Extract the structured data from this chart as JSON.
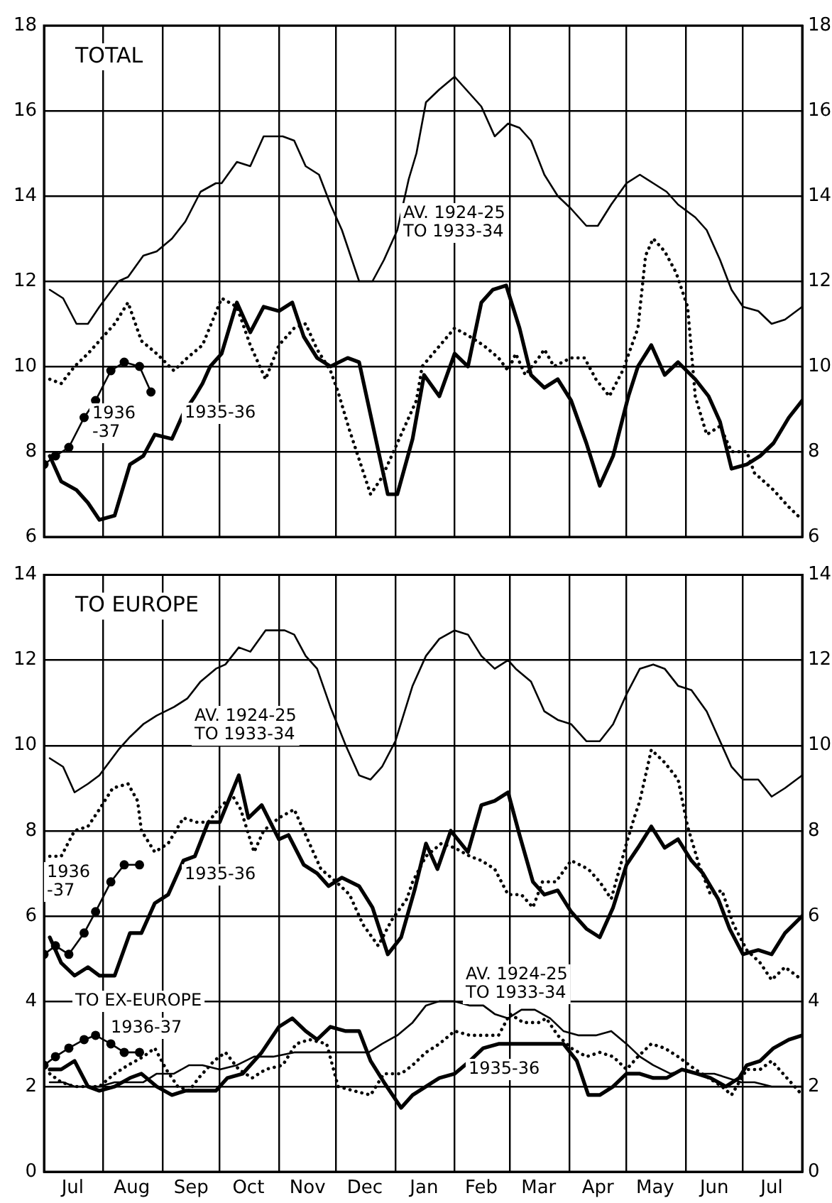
{
  "chart_data": [
    {
      "type": "line",
      "title": "TOTAL",
      "xlim": [
        "1935-07-01",
        "1936-08-01"
      ],
      "ylim": [
        6,
        18
      ],
      "yticks": [
        6,
        8,
        10,
        12,
        14,
        16,
        18
      ],
      "y2lim": [
        6,
        18
      ],
      "y2ticks": [
        6,
        8,
        10,
        12,
        14,
        16,
        18
      ],
      "grid": true,
      "tick_labels": "y",
      "xticks": [
        {
          "value": "1935-07-01",
          "label": null
        },
        {
          "value": "1935-08-01",
          "label": null
        },
        {
          "value": "1935-09-01",
          "label": null
        },
        {
          "value": "1935-10-01",
          "label": null
        },
        {
          "value": "1935-11-01",
          "label": null
        },
        {
          "value": "1935-12-01",
          "label": null
        },
        {
          "value": "1936-01-01",
          "label": null
        },
        {
          "value": "1936-02-01",
          "label": null
        },
        {
          "value": "1936-03-01",
          "label": null
        },
        {
          "value": "1936-04-01",
          "label": null
        },
        {
          "value": "1936-05-01",
          "label": null
        },
        {
          "value": "1936-06-01",
          "label": null
        },
        {
          "value": "1936-07-01",
          "label": null
        },
        {
          "value": "1936-08-01",
          "label": null
        }
      ],
      "series": [
        {
          "color": "#000000",
          "line_style": "solid",
          "x": [
            "1935-07-04",
            "1935-07-11",
            "1935-07-18",
            "1935-07-24",
            "1935-07-30",
            "1935-08-09",
            "1935-08-14",
            "1935-08-22",
            "1935-08-29",
            "1935-09-06",
            "1935-09-13",
            "1935-09-21",
            "1935-09-29",
            "1935-10-02",
            "1935-10-10",
            "1935-10-17",
            "1935-10-24",
            "1935-11-03",
            "1935-11-09",
            "1935-11-15",
            "1935-11-22",
            "1935-11-28",
            "1935-12-04",
            "1935-12-13",
            "1935-12-20",
            "1935-12-26",
            "1936-01-02",
            "1936-01-08",
            "1936-01-12",
            "1936-01-17",
            "1936-01-24",
            "1936-02-01",
            "1936-02-09",
            "1936-02-15",
            "1936-02-22",
            "1936-02-29",
            "1936-03-06",
            "1936-03-12",
            "1936-03-19",
            "1936-03-26",
            "1936-04-02",
            "1936-04-10",
            "1936-04-16",
            "1936-04-23",
            "1936-05-01",
            "1936-05-08",
            "1936-05-15",
            "1936-05-22",
            "1936-05-28",
            "1936-06-06",
            "1936-06-12",
            "1936-06-19",
            "1936-06-25",
            "1936-07-01",
            "1936-07-09",
            "1936-07-16",
            "1936-07-23",
            "1936-08-01"
          ],
          "values": [
            11.8,
            11.6,
            11.0,
            11.0,
            11.4,
            12.0,
            12.1,
            12.6,
            12.7,
            13.0,
            13.4,
            14.1,
            14.3,
            14.3,
            14.8,
            14.7,
            15.4,
            15.4,
            15.3,
            14.7,
            14.5,
            13.8,
            13.2,
            12.0,
            12.0,
            12.5,
            13.2,
            14.4,
            15.0,
            16.2,
            16.5,
            16.8,
            16.4,
            16.1,
            15.4,
            15.7,
            15.6,
            15.3,
            14.5,
            14.0,
            13.7,
            13.3,
            13.3,
            13.8,
            14.3,
            14.5,
            14.3,
            14.1,
            13.8,
            13.5,
            13.2,
            12.5,
            11.8,
            11.4,
            11.3,
            11.0,
            11.1,
            11.4
          ]
        },
        {
          "color": "#000000",
          "line_style": "solid",
          "x": [
            "1935-07-04",
            "1935-07-10",
            "1935-07-18",
            "1935-07-24",
            "1935-07-30",
            "1935-08-07",
            "1935-08-15",
            "1935-08-22",
            "1935-08-28",
            "1935-09-06",
            "1935-09-12",
            "1935-09-18",
            "1935-09-22",
            "1935-09-26",
            "1935-10-02",
            "1935-10-10",
            "1935-10-17",
            "1935-10-24",
            "1935-11-01",
            "1935-11-08",
            "1935-11-14",
            "1935-11-21",
            "1935-11-28",
            "1935-12-07",
            "1935-12-13",
            "1935-12-28",
            "1936-01-02",
            "1936-01-10",
            "1936-01-16",
            "1936-01-24",
            "1936-02-01",
            "1936-02-08",
            "1936-02-15",
            "1936-02-21",
            "1936-02-28",
            "1936-03-06",
            "1936-03-12",
            "1936-03-19",
            "1936-03-26",
            "1936-04-02",
            "1936-04-10",
            "1936-04-17",
            "1936-04-24",
            "1936-05-02",
            "1936-05-07",
            "1936-05-14",
            "1936-05-21",
            "1936-05-28",
            "1936-06-06",
            "1936-06-13",
            "1936-06-19",
            "1936-06-25",
            "1936-07-03",
            "1936-07-10",
            "1936-07-17",
            "1936-07-25",
            "1936-08-01"
          ],
          "values": [
            7.9,
            7.3,
            7.1,
            6.8,
            6.4,
            6.5,
            7.7,
            7.9,
            8.4,
            8.3,
            8.9,
            9.3,
            9.6,
            10.0,
            10.3,
            11.5,
            10.8,
            11.4,
            11.3,
            11.5,
            10.7,
            10.2,
            10.0,
            10.2,
            10.1,
            7.0,
            7.0,
            8.3,
            9.8,
            9.3,
            10.3,
            10.0,
            11.5,
            11.8,
            11.9,
            10.9,
            9.8,
            9.5,
            9.7,
            9.2,
            8.2,
            7.2,
            7.9,
            9.3,
            10.0,
            10.5,
            9.8,
            10.1,
            9.7,
            9.3,
            8.7,
            7.6,
            7.7,
            7.9,
            8.2,
            8.8,
            9.2
          ]
        },
        {
          "color": "#000000",
          "line_style": "dotted",
          "x": [
            "1935-07-04",
            "1935-07-10",
            "1935-07-17",
            "1935-07-24",
            "1935-07-30",
            "1935-08-07",
            "1935-08-14",
            "1935-08-21",
            "1935-08-29",
            "1935-09-07",
            "1935-09-14",
            "1935-09-22",
            "1935-10-02",
            "1935-10-10",
            "1935-10-17",
            "1935-10-25",
            "1935-11-01",
            "1935-11-09",
            "1935-11-15",
            "1935-11-21",
            "1935-11-28",
            "1935-12-02",
            "1935-12-08",
            "1935-12-19",
            "1935-12-25",
            "1936-01-02",
            "1936-01-12",
            "1936-01-15",
            "1936-02-01",
            "1936-02-09",
            "1936-02-16",
            "1936-02-24",
            "1936-02-29",
            "1936-03-04",
            "1936-03-09",
            "1936-03-16",
            "1936-03-19",
            "1936-03-24",
            "1936-04-02",
            "1936-04-09",
            "1936-04-15",
            "1936-04-22",
            "1936-04-29",
            "1936-05-07",
            "1936-05-11",
            "1936-05-15",
            "1936-05-21",
            "1936-05-27",
            "1936-06-02",
            "1936-06-06",
            "1936-06-12",
            "1936-06-19",
            "1936-06-25",
            "1936-07-03",
            "1936-07-07",
            "1936-07-17",
            "1936-07-25",
            "1936-08-01"
          ],
          "values": [
            9.7,
            9.6,
            10.0,
            10.3,
            10.6,
            11.0,
            11.5,
            10.6,
            10.3,
            9.9,
            10.2,
            10.5,
            11.6,
            11.4,
            10.5,
            9.7,
            10.5,
            10.9,
            11.0,
            10.4,
            9.9,
            9.4,
            8.5,
            7.0,
            7.4,
            8.2,
            9.2,
            10.0,
            10.9,
            10.7,
            10.5,
            10.2,
            9.9,
            10.3,
            9.8,
            10.2,
            10.4,
            10.0,
            10.2,
            10.2,
            9.7,
            9.3,
            9.9,
            10.9,
            12.6,
            13.0,
            12.7,
            12.2,
            11.4,
            9.3,
            8.4,
            8.6,
            8.0,
            8.0,
            7.5,
            7.1,
            6.7,
            6.4
          ]
        },
        {
          "color": "#000000",
          "line_style": "solid",
          "marker": "circle",
          "x": [
            "1935-07-01",
            "1935-07-07",
            "1935-07-14",
            "1935-07-22",
            "1935-07-28",
            "1935-08-05",
            "1935-08-12",
            "1935-08-20",
            "1935-08-26"
          ],
          "values": [
            7.7,
            7.9,
            8.1,
            8.8,
            9.2,
            9.9,
            10.1,
            10.0,
            9.4
          ]
        }
      ],
      "annotations": [
        "AV. 1924-25\nTO 1933-34",
        "1936\n-37",
        "1935-36"
      ]
    },
    {
      "type": "line",
      "title": "TO EUROPE",
      "xlim": [
        "1935-07-01",
        "1936-08-01"
      ],
      "ylim": [
        0,
        14
      ],
      "yticks": [
        0,
        2,
        4,
        6,
        8,
        10,
        12,
        14
      ],
      "y2lim": [
        0,
        14
      ],
      "y2ticks": [
        0,
        2,
        4,
        6,
        8,
        10,
        12,
        14
      ],
      "grid": true,
      "xticks": [
        {
          "value": "1935-07-01",
          "label": null
        },
        {
          "value": "1935-07-16",
          "label": "Jul"
        },
        {
          "value": "1935-08-01",
          "label": null
        },
        {
          "value": "1935-08-16",
          "label": "Aug"
        },
        {
          "value": "1935-09-01",
          "label": null
        },
        {
          "value": "1935-09-16",
          "label": "Sep"
        },
        {
          "value": "1935-10-01",
          "label": null
        },
        {
          "value": "1935-10-16",
          "label": "Oct"
        },
        {
          "value": "1935-11-01",
          "label": null
        },
        {
          "value": "1935-11-16",
          "label": "Nov"
        },
        {
          "value": "1935-12-01",
          "label": null
        },
        {
          "value": "1935-12-16",
          "label": "Dec"
        },
        {
          "value": "1936-01-01",
          "label": null
        },
        {
          "value": "1936-01-16",
          "label": "Jan"
        },
        {
          "value": "1936-02-01",
          "label": null
        },
        {
          "value": "1936-02-15",
          "label": "Feb"
        },
        {
          "value": "1936-03-01",
          "label": null
        },
        {
          "value": "1936-03-16",
          "label": "Mar"
        },
        {
          "value": "1936-04-01",
          "label": null
        },
        {
          "value": "1936-04-16",
          "label": "Apr"
        },
        {
          "value": "1936-05-01",
          "label": null
        },
        {
          "value": "1936-05-16",
          "label": "May"
        },
        {
          "value": "1936-06-01",
          "label": null
        },
        {
          "value": "1936-06-16",
          "label": "Jun"
        },
        {
          "value": "1936-07-01",
          "label": null
        },
        {
          "value": "1936-07-16",
          "label": "Jul"
        },
        {
          "value": "1936-08-01",
          "label": null
        }
      ],
      "series": [
        {
          "color": "#000000",
          "line_style": "solid",
          "x": [
            "1935-07-04",
            "1935-07-11",
            "1935-07-17",
            "1935-07-24",
            "1935-07-30",
            "1935-08-09",
            "1935-08-15",
            "1935-08-22",
            "1935-08-29",
            "1935-09-07",
            "1935-09-14",
            "1935-09-21",
            "1935-09-29",
            "1935-10-04",
            "1935-10-11",
            "1935-10-17",
            "1935-10-25",
            "1935-11-04",
            "1935-11-09",
            "1935-11-15",
            "1935-11-21",
            "1935-11-28",
            "1935-12-06",
            "1935-12-13",
            "1935-12-19",
            "1935-12-25",
            "1936-01-01",
            "1936-01-10",
            "1936-01-17",
            "1936-01-24",
            "1936-02-01",
            "1936-02-08",
            "1936-02-15",
            "1936-02-22",
            "1936-02-29",
            "1936-03-04",
            "1936-03-12",
            "1936-03-19",
            "1936-03-26",
            "1936-04-02",
            "1936-04-10",
            "1936-04-17",
            "1936-04-24",
            "1936-05-01",
            "1936-05-08",
            "1936-05-15",
            "1936-05-21",
            "1936-05-28",
            "1936-06-04",
            "1936-06-12",
            "1936-06-18",
            "1936-06-25",
            "1936-07-01",
            "1936-07-09",
            "1936-07-16",
            "1936-07-23",
            "1936-08-01"
          ],
          "values": [
            9.7,
            9.5,
            8.9,
            9.1,
            9.3,
            9.9,
            10.2,
            10.5,
            10.7,
            10.9,
            11.1,
            11.5,
            11.8,
            11.9,
            12.3,
            12.2,
            12.7,
            12.7,
            12.6,
            12.1,
            11.8,
            10.9,
            10.0,
            9.3,
            9.2,
            9.5,
            10.1,
            11.4,
            12.1,
            12.5,
            12.7,
            12.6,
            12.1,
            11.8,
            12.0,
            11.8,
            11.5,
            10.8,
            10.6,
            10.5,
            10.1,
            10.1,
            10.5,
            11.2,
            11.8,
            11.9,
            11.8,
            11.4,
            11.3,
            10.8,
            10.2,
            9.5,
            9.2,
            9.2,
            8.8,
            9.0,
            9.3
          ]
        },
        {
          "color": "#000000",
          "line_style": "solid",
          "x": [
            "1935-07-04",
            "1935-07-10",
            "1935-07-17",
            "1935-07-24",
            "1935-07-30",
            "1935-08-07",
            "1935-08-15",
            "1935-08-21",
            "1935-08-28",
            "1935-09-04",
            "1935-09-12",
            "1935-09-18",
            "1935-09-25",
            "1935-10-01",
            "1935-10-11",
            "1935-10-16",
            "1935-10-23",
            "1935-11-01",
            "1935-11-06",
            "1935-11-14",
            "1935-11-21",
            "1935-11-27",
            "1935-12-04",
            "1935-12-13",
            "1935-12-20",
            "1935-12-28",
            "1936-01-04",
            "1936-01-11",
            "1936-01-17",
            "1936-01-23",
            "1936-01-30",
            "1936-02-08",
            "1936-02-15",
            "1936-02-22",
            "1936-02-29",
            "1936-03-06",
            "1936-03-13",
            "1936-03-19",
            "1936-03-26",
            "1936-04-02",
            "1936-04-10",
            "1936-04-17",
            "1936-04-24",
            "1936-05-01",
            "1936-05-07",
            "1936-05-14",
            "1936-05-21",
            "1936-05-28",
            "1936-06-04",
            "1936-06-10",
            "1936-06-18",
            "1936-06-24",
            "1936-07-01",
            "1936-07-09",
            "1936-07-16",
            "1936-07-23",
            "1936-08-01"
          ],
          "values": [
            5.5,
            4.9,
            4.6,
            4.8,
            4.6,
            4.6,
            5.6,
            5.6,
            6.3,
            6.5,
            7.3,
            7.4,
            8.2,
            8.2,
            9.3,
            8.3,
            8.6,
            7.8,
            7.9,
            7.2,
            7.0,
            6.7,
            6.9,
            6.7,
            6.2,
            5.1,
            5.5,
            6.6,
            7.7,
            7.1,
            8.0,
            7.5,
            8.6,
            8.7,
            8.9,
            7.9,
            6.8,
            6.5,
            6.6,
            6.1,
            5.7,
            5.5,
            6.2,
            7.2,
            7.6,
            8.1,
            7.6,
            7.8,
            7.3,
            7.0,
            6.4,
            5.7,
            5.1,
            5.2,
            5.1,
            5.6,
            6.0
          ]
        },
        {
          "color": "#000000",
          "line_style": "dotted",
          "x": [
            "1935-07-04",
            "1935-07-10",
            "1935-07-17",
            "1935-07-24",
            "1935-07-30",
            "1935-08-06",
            "1935-08-14",
            "1935-08-19",
            "1935-08-21",
            "1935-08-28",
            "1935-09-04",
            "1935-09-12",
            "1935-09-19",
            "1935-09-25",
            "1935-10-02",
            "1935-10-08",
            "1935-10-12",
            "1935-10-19",
            "1935-10-24",
            "1935-11-01",
            "1935-11-09",
            "1935-11-16",
            "1935-11-23",
            "1935-12-01",
            "1935-12-08",
            "1935-12-15",
            "1935-12-23",
            "1935-12-30",
            "1936-01-07",
            "1936-01-10",
            "1936-01-17",
            "1936-01-25",
            "1936-02-01",
            "1936-02-09",
            "1936-02-15",
            "1936-02-22",
            "1936-02-29",
            "1936-03-07",
            "1936-03-13",
            "1936-03-18",
            "1936-03-25",
            "1936-04-02",
            "1936-04-11",
            "1936-04-17",
            "1936-04-23",
            "1936-05-01",
            "1936-05-05",
            "1936-05-08",
            "1936-05-14",
            "1936-05-21",
            "1936-05-28",
            "1936-06-02",
            "1936-06-08",
            "1936-06-14",
            "1936-06-20",
            "1936-06-26",
            "1936-07-03",
            "1936-07-10",
            "1936-07-16",
            "1936-07-23",
            "1936-08-01"
          ],
          "values": [
            7.4,
            7.4,
            8.0,
            8.1,
            8.5,
            9.0,
            9.1,
            8.7,
            8.0,
            7.5,
            7.7,
            8.3,
            8.2,
            8.2,
            8.6,
            8.8,
            8.5,
            7.5,
            8.0,
            8.3,
            8.5,
            7.8,
            7.1,
            6.8,
            6.5,
            5.8,
            5.3,
            5.9,
            6.4,
            6.8,
            7.4,
            7.7,
            7.6,
            7.4,
            7.3,
            7.1,
            6.5,
            6.5,
            6.2,
            6.8,
            6.8,
            7.3,
            7.1,
            6.8,
            6.4,
            7.7,
            8.3,
            8.7,
            9.9,
            9.6,
            9.2,
            8.1,
            7.2,
            6.5,
            6.6,
            5.8,
            5.2,
            4.9,
            4.5,
            4.8,
            4.5
          ]
        },
        {
          "color": "#000000",
          "line_style": "solid",
          "marker": "circle",
          "x": [
            "1935-07-01",
            "1935-07-07",
            "1935-07-14",
            "1935-07-22",
            "1935-07-28",
            "1935-08-05",
            "1935-08-12",
            "1935-08-20"
          ],
          "values": [
            5.1,
            5.3,
            5.1,
            5.6,
            6.1,
            6.8,
            7.2,
            7.2
          ]
        },
        {
          "color": "#000000",
          "line_style": "solid",
          "x": [
            "1935-07-04",
            "1935-07-11",
            "1935-07-17",
            "1935-07-24",
            "1935-07-30",
            "1935-08-07",
            "1935-08-15",
            "1935-08-22",
            "1935-08-29",
            "1935-09-07",
            "1935-09-15",
            "1935-09-22",
            "1935-10-01",
            "1935-10-10",
            "1935-10-19",
            "1935-10-29",
            "1935-11-09",
            "1935-11-19",
            "1935-11-28",
            "1935-12-08",
            "1935-12-18",
            "1935-12-25",
            "1936-01-02",
            "1936-01-10",
            "1936-01-17",
            "1936-01-24",
            "1936-02-01",
            "1936-02-09",
            "1936-02-16",
            "1936-02-22",
            "1936-02-29",
            "1936-03-07",
            "1936-03-14",
            "1936-03-22",
            "1936-03-29",
            "1936-04-06",
            "1936-04-15",
            "1936-04-23",
            "1936-05-01",
            "1936-05-08",
            "1936-05-15",
            "1936-05-24",
            "1936-06-01",
            "1936-06-08",
            "1936-06-16",
            "1936-06-23",
            "1936-06-30",
            "1936-07-07",
            "1936-07-16",
            "1936-07-23",
            "1936-08-01"
          ],
          "values": [
            2.1,
            2.1,
            2.0,
            2.0,
            2.0,
            2.1,
            2.1,
            2.1,
            2.3,
            2.3,
            2.5,
            2.5,
            2.4,
            2.5,
            2.7,
            2.7,
            2.8,
            2.8,
            2.8,
            2.8,
            2.8,
            3.0,
            3.2,
            3.5,
            3.9,
            4.0,
            4.0,
            3.9,
            3.9,
            3.7,
            3.6,
            3.8,
            3.8,
            3.6,
            3.3,
            3.2,
            3.2,
            3.3,
            3.0,
            2.7,
            2.5,
            2.3,
            2.4,
            2.3,
            2.3,
            2.2,
            2.1,
            2.1,
            2.0,
            2.0,
            2.0
          ]
        },
        {
          "color": "#000000",
          "line_style": "solid",
          "x": [
            "1935-07-04",
            "1935-07-10",
            "1935-07-17",
            "1935-07-24",
            "1935-07-30",
            "1935-08-07",
            "1935-08-15",
            "1935-08-21",
            "1935-08-29",
            "1935-09-06",
            "1935-09-13",
            "1935-09-22",
            "1935-09-29",
            "1935-10-05",
            "1935-10-13",
            "1935-10-23",
            "1935-11-01",
            "1935-11-08",
            "1935-11-15",
            "1935-11-21",
            "1935-11-28",
            "1935-12-06",
            "1935-12-13",
            "1935-12-19",
            "1935-12-26",
            "1936-01-04",
            "1936-01-10",
            "1936-01-17",
            "1936-01-24",
            "1936-02-01",
            "1936-02-09",
            "1936-02-16",
            "1936-02-24",
            "1936-03-01",
            "1936-03-08",
            "1936-03-14",
            "1936-03-22",
            "1936-03-29",
            "1936-04-05",
            "1936-04-11",
            "1936-04-17",
            "1936-04-24",
            "1936-05-01",
            "1936-05-08",
            "1936-05-15",
            "1936-05-22",
            "1936-05-30",
            "1936-06-07",
            "1936-06-14",
            "1936-06-22",
            "1936-06-29",
            "1936-07-03",
            "1936-07-10",
            "1936-07-17",
            "1936-07-25",
            "1936-08-01"
          ],
          "values": [
            2.4,
            2.4,
            2.6,
            2.0,
            1.9,
            2.0,
            2.2,
            2.3,
            2.0,
            1.8,
            1.9,
            1.9,
            1.9,
            2.2,
            2.3,
            2.8,
            3.4,
            3.6,
            3.3,
            3.1,
            3.4,
            3.3,
            3.3,
            2.6,
            2.1,
            1.5,
            1.8,
            2.0,
            2.2,
            2.3,
            2.6,
            2.9,
            3.0,
            3.0,
            3.0,
            3.0,
            3.0,
            3.0,
            2.6,
            1.8,
            1.8,
            2.0,
            2.3,
            2.3,
            2.2,
            2.2,
            2.4,
            2.3,
            2.2,
            2.0,
            2.2,
            2.5,
            2.6,
            2.9,
            3.1,
            3.2
          ]
        },
        {
          "color": "#000000",
          "line_style": "dotted",
          "x": [
            "1935-07-04",
            "1935-07-10",
            "1935-07-17",
            "1935-07-24",
            "1935-07-30",
            "1935-08-07",
            "1935-08-14",
            "1935-08-22",
            "1935-08-28",
            "1935-09-03",
            "1935-09-09",
            "1935-09-15",
            "1935-09-20",
            "1935-09-28",
            "1935-10-04",
            "1935-10-11",
            "1935-10-18",
            "1935-10-25",
            "1935-11-03",
            "1935-11-10",
            "1935-11-17",
            "1935-11-26",
            "1935-12-02",
            "1935-12-10",
            "1935-12-19",
            "1935-12-26",
            "1936-01-04",
            "1936-01-10",
            "1936-01-17",
            "1936-01-24",
            "1936-02-01",
            "1936-02-09",
            "1936-02-16",
            "1936-02-24",
            "1936-03-01",
            "1936-03-08",
            "1936-03-16",
            "1936-03-20",
            "1936-03-26",
            "1936-04-02",
            "1936-04-10",
            "1936-04-17",
            "1936-04-24",
            "1936-05-01",
            "1936-05-07",
            "1936-05-14",
            "1936-05-21",
            "1936-05-28",
            "1936-06-06",
            "1936-06-13",
            "1936-06-20",
            "1936-06-25",
            "1936-07-03",
            "1936-07-10",
            "1936-07-16",
            "1936-07-22",
            "1936-07-28",
            "1936-08-01"
          ],
          "values": [
            2.3,
            2.1,
            2.0,
            2.0,
            2.0,
            2.3,
            2.5,
            2.7,
            2.9,
            2.4,
            2.0,
            1.9,
            2.2,
            2.6,
            2.8,
            2.4,
            2.2,
            2.4,
            2.5,
            3.0,
            3.1,
            3.0,
            2.0,
            1.9,
            1.8,
            2.3,
            2.3,
            2.5,
            2.8,
            3.0,
            3.3,
            3.2,
            3.2,
            3.2,
            3.7,
            3.5,
            3.5,
            3.6,
            3.2,
            2.9,
            2.7,
            2.8,
            2.7,
            2.4,
            2.7,
            3.0,
            2.9,
            2.7,
            2.4,
            2.2,
            2.0,
            1.8,
            2.4,
            2.4,
            2.6,
            2.3,
            2.0,
            1.8
          ]
        },
        {
          "color": "#000000",
          "line_style": "solid",
          "marker": "circle",
          "x": [
            "1935-07-01",
            "1935-07-07",
            "1935-07-14",
            "1935-07-22",
            "1935-07-28",
            "1935-08-05",
            "1935-08-12",
            "1935-08-20"
          ],
          "values": [
            2.5,
            2.7,
            2.9,
            3.1,
            3.2,
            3.0,
            2.8,
            2.8
          ]
        }
      ],
      "annotations": [
        "AV. 1924-25\nTO 1933-34",
        "1936\n-37",
        "1935-36",
        "TO EX-EUROPE",
        "1936-37",
        "AV. 1924-25\nTO 1933-34",
        "1935-36"
      ]
    }
  ]
}
